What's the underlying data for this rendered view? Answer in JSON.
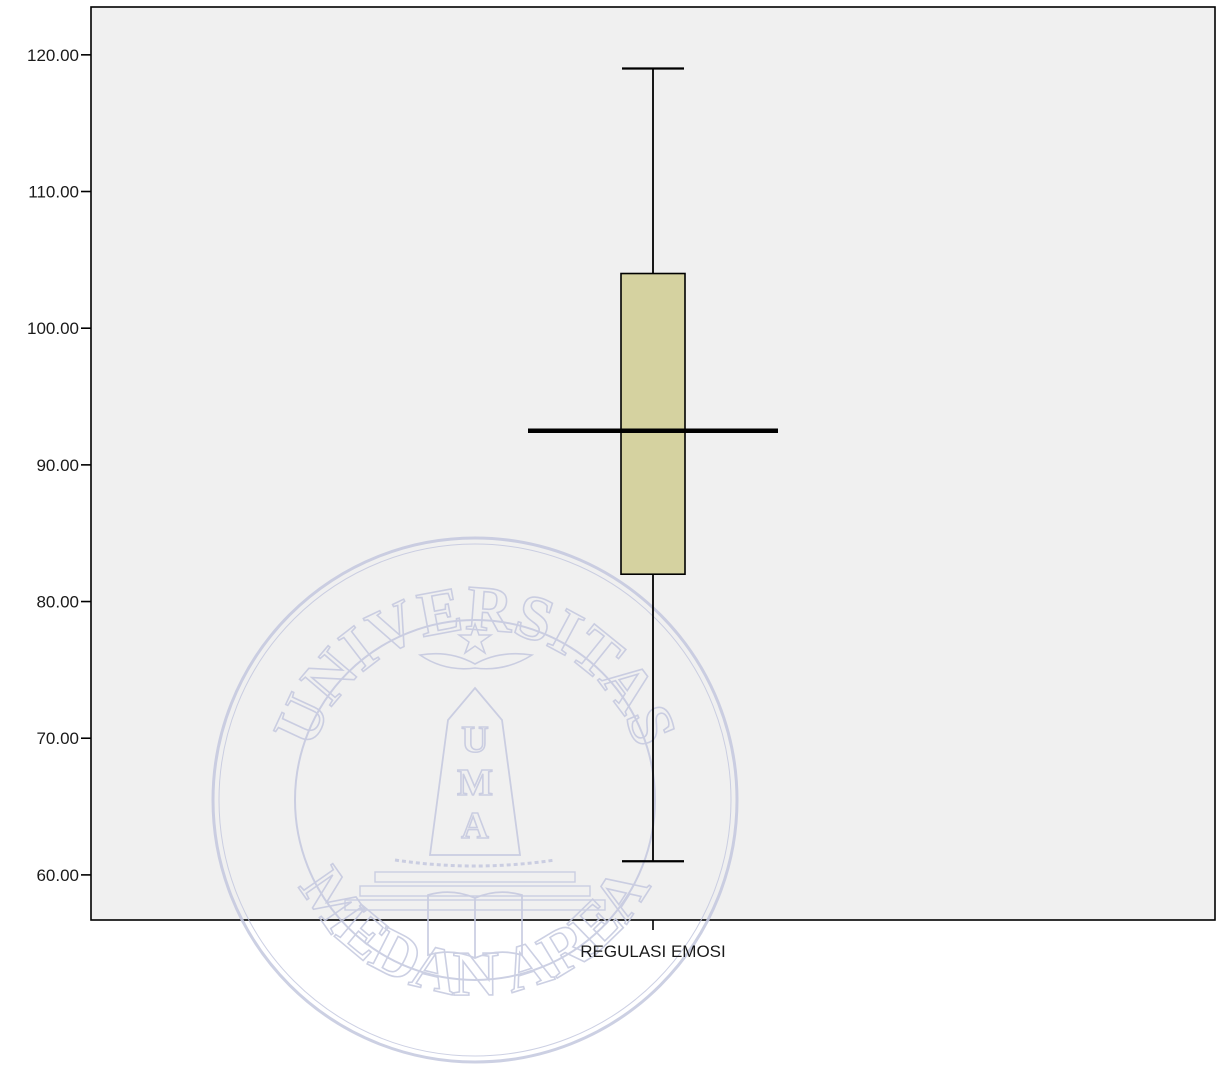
{
  "chart_data": {
    "type": "box",
    "categories": [
      "REGULASI EMOSI"
    ],
    "boxes": [
      {
        "category": "REGULASI EMOSI",
        "min": 61,
        "q1": 82,
        "median": 92.5,
        "q3": 104,
        "max": 119
      }
    ],
    "ylim": [
      56.7,
      123.5
    ],
    "yticks": [
      60,
      70,
      80,
      90,
      100,
      110,
      120
    ],
    "ytick_labels": [
      "60.00",
      "70.00",
      "80.00",
      "90.00",
      "100.00",
      "110.00",
      "120.00"
    ],
    "title": "",
    "xlabel": "",
    "ylabel": "",
    "colors": {
      "plot_background": "#f0f0f0",
      "box_fill": "#d3cf99",
      "line": "#000000"
    }
  },
  "watermark": {
    "top_text": "UNIVERSITAS",
    "bottom_text": "MEDAN AREA",
    "monogram": [
      "U",
      "M",
      "A"
    ],
    "color": "#c4c8df"
  }
}
